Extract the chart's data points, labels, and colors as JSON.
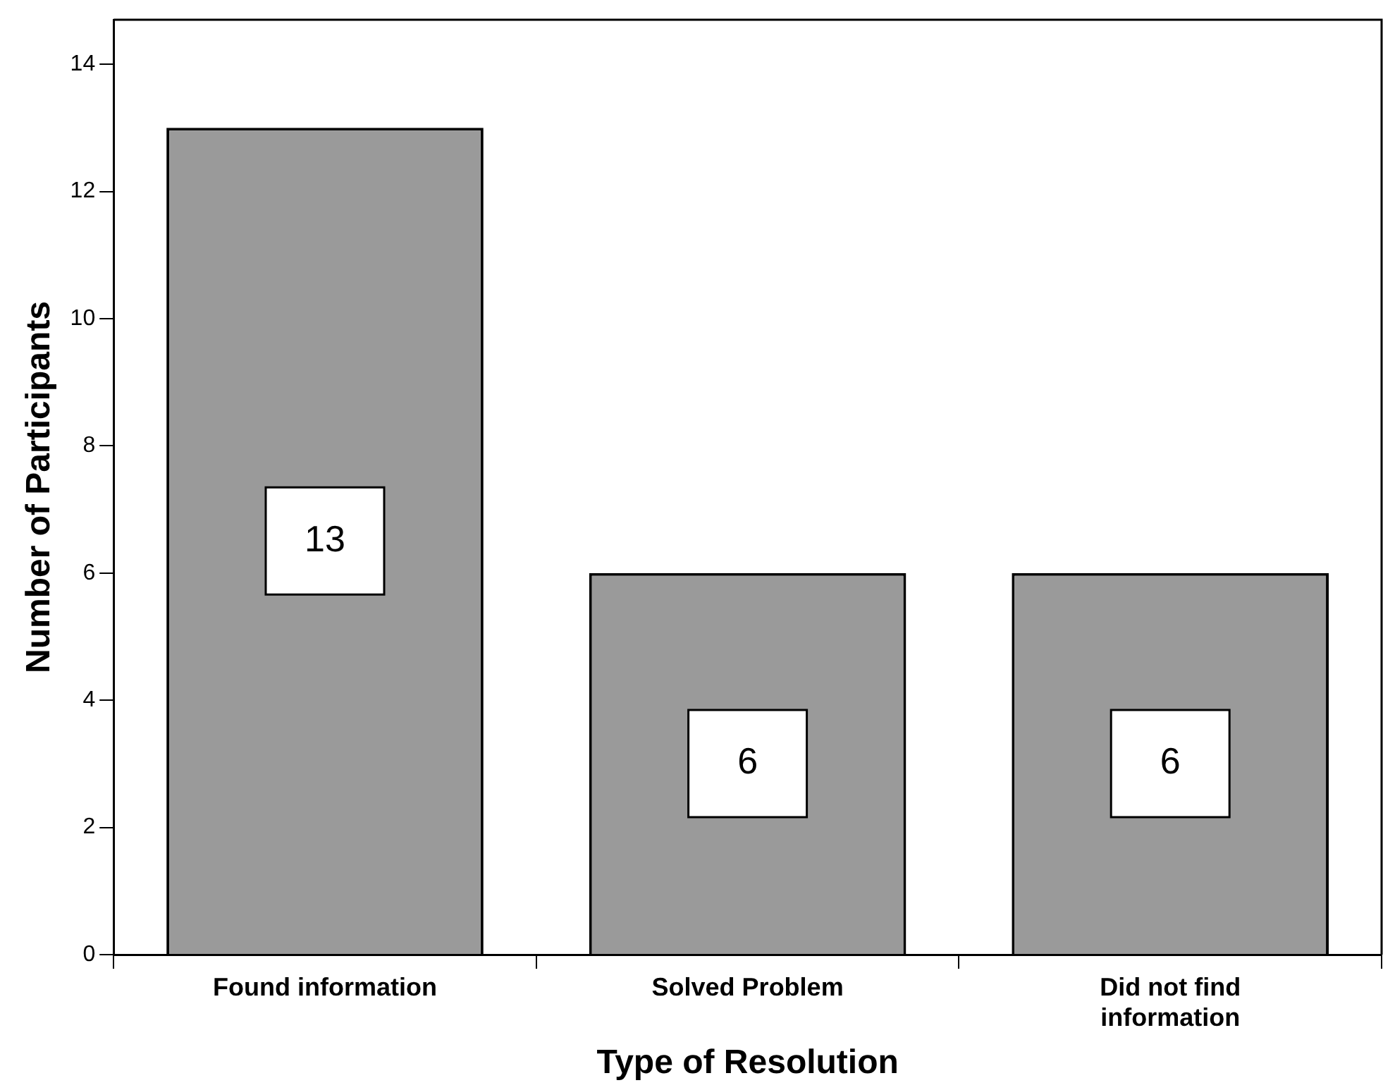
{
  "chart_data": {
    "type": "bar",
    "xlabel": "Type of Resolution",
    "ylabel": "Number of Participants",
    "categories": [
      "Found information",
      "Solved Problem",
      "Did not find information"
    ],
    "values": [
      13,
      6,
      6
    ],
    "color": "#9a9a9a",
    "ylim": [
      0,
      14.7
    ],
    "yticks": [
      0,
      2,
      4,
      6,
      8,
      10,
      12,
      14
    ],
    "grid": false,
    "legend": false,
    "data_labels": true
  }
}
